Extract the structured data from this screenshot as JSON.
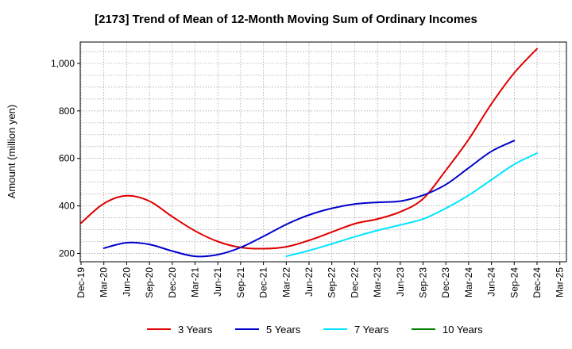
{
  "chart_data": {
    "type": "line",
    "title": "[2173]  Trend of Mean of 12-Month Moving Sum of Ordinary Incomes",
    "xlabel": "",
    "ylabel": "Amount (million yen)",
    "ylim": [
      165,
      1090
    ],
    "yticks": [
      200,
      400,
      600,
      800,
      1000
    ],
    "ytick_labels": [
      "200",
      "400",
      "600",
      "800",
      "1,000"
    ],
    "xticks": [
      "Dec-19",
      "Mar-20",
      "Jun-20",
      "Sep-20",
      "Dec-20",
      "Mar-21",
      "Jun-21",
      "Sep-21",
      "Dec-21",
      "Mar-22",
      "Jun-22",
      "Sep-22",
      "Dec-22",
      "Mar-23",
      "Jun-23",
      "Sep-23",
      "Dec-23",
      "Mar-24",
      "Jun-24",
      "Sep-24",
      "Dec-24",
      "Mar-25"
    ],
    "grid": true,
    "legend_position": "bottom",
    "series": [
      {
        "name": "3 Years",
        "color": "#e00000",
        "start_index": 0,
        "values": [
          328,
          410,
          443,
          420,
          355,
          295,
          250,
          225,
          220,
          228,
          255,
          290,
          325,
          345,
          375,
          430,
          550,
          680,
          830,
          960,
          1062
        ]
      },
      {
        "name": "5 Years",
        "color": "#0000cc",
        "start_index": 1,
        "values": [
          222,
          245,
          238,
          210,
          188,
          195,
          225,
          272,
          322,
          362,
          390,
          408,
          415,
          420,
          445,
          490,
          560,
          630,
          675
        ]
      },
      {
        "name": "7 Years",
        "color": "#00e5ff",
        "start_index": 9,
        "values": [
          188,
          212,
          240,
          270,
          297,
          320,
          345,
          390,
          445,
          510,
          575,
          622
        ]
      },
      {
        "name": "10 Years",
        "color": "#008000",
        "start_index": 0,
        "values": []
      }
    ]
  }
}
